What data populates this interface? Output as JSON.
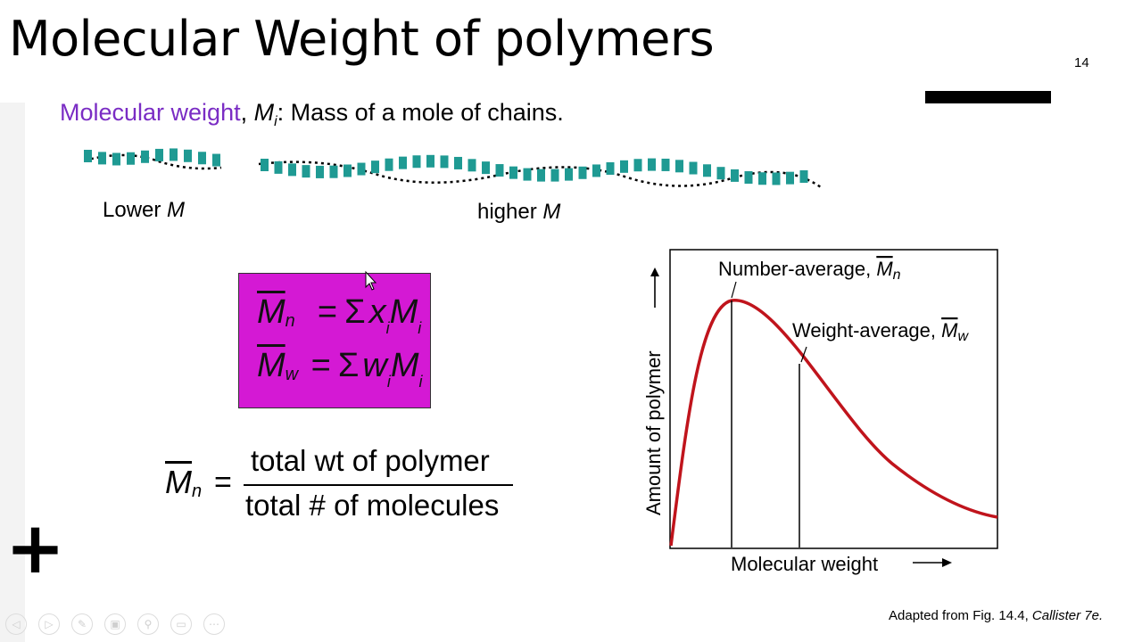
{
  "slide": {
    "title": "Molecular Weight of polymers",
    "number": "14",
    "definition": {
      "term": "Molecular weight",
      "comma": ", ",
      "symbol": "M",
      "symbol_sub": "i",
      "text": ":  Mass of a mole of chains."
    },
    "chains": {
      "lower_label": "Lower",
      "higher_label": "higher",
      "m_symbol": "M"
    },
    "formula_box": {
      "line1": {
        "lhs": "M",
        "lhs_sub": "n",
        "op": "=",
        "sum": "Σ",
        "x": "x",
        "x_sub": "i",
        "m": "M",
        "m_sub": "i"
      },
      "line2": {
        "lhs": "M",
        "lhs_sub": "w",
        "op": "=",
        "sum": "Σ",
        "x": "w",
        "x_sub": "i",
        "m": "M",
        "m_sub": "i"
      }
    },
    "mn_fraction": {
      "lhs": "M",
      "lhs_sub": "n",
      "op": "=",
      "numerator": "total wt of polymer",
      "denominator": "total # of molecules"
    },
    "caption_prefix": "Adapted from Fig. 14.4, ",
    "caption_source": "Callister 7e."
  },
  "chart_data": {
    "type": "line",
    "title": "",
    "xlabel": "Molecular weight",
    "ylabel": "Amount of polymer",
    "annotations": [
      {
        "text": "Number-average, ",
        "symbol": "M",
        "sub": "n"
      },
      {
        "text": "Weight-average, ",
        "symbol": "M",
        "sub": "w"
      }
    ],
    "curve_color": "#c0141c"
  },
  "toolbar": {
    "icons": [
      "prev-icon",
      "next-icon",
      "pen-icon",
      "slides-icon",
      "zoom-icon",
      "subtitles-icon",
      "more-icon"
    ]
  },
  "colors": {
    "purple": "#7a2cc4",
    "box_fill": "#d419d4",
    "chain_teal": "#1f9a93",
    "curve": "#c0141c"
  }
}
